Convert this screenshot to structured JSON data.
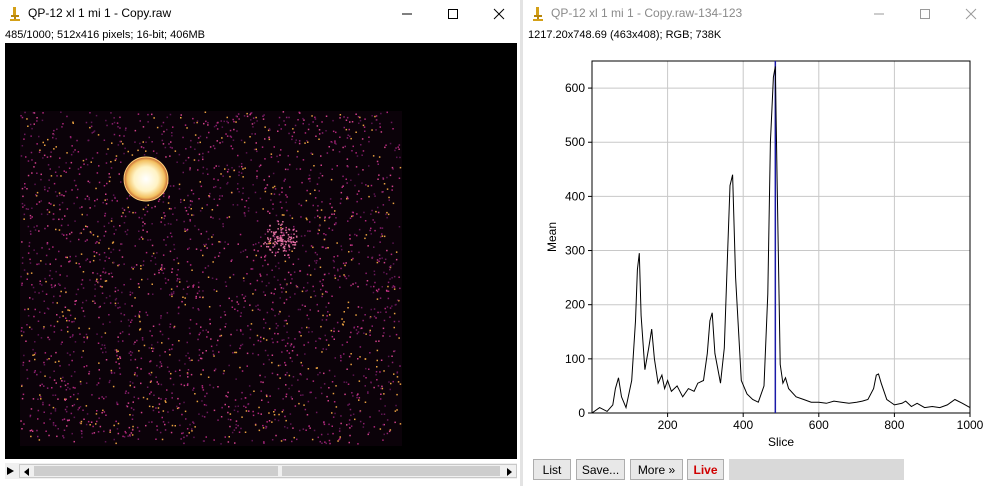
{
  "left_window": {
    "title": "QP-12 xl 1 mi 1 - Copy.raw",
    "info": "485/1000; 512x416 pixels; 16-bit; 406MB",
    "controls": [
      "minimize",
      "maximize",
      "close"
    ]
  },
  "right_window": {
    "title": "QP-12 xl 1 mi 1 - Copy.raw-134-123",
    "info": "1217.20x748.69    (463x408); RGB; 738K",
    "controls": [
      "minimize",
      "maximize",
      "close"
    ],
    "buttons": {
      "list": "List",
      "save": "Save...",
      "more": "More »",
      "live": "Live"
    }
  },
  "colors": {
    "plot_line": "#000000",
    "marker_line": "#1a1aa8",
    "live_text": "#d00000",
    "grid": "#c8c8c8"
  },
  "chart_data": {
    "type": "line",
    "xlabel": "Slice",
    "ylabel": "Mean",
    "xlim": [
      0,
      1000
    ],
    "ylim": [
      0,
      650
    ],
    "x_ticks": [
      200,
      400,
      600,
      800,
      1000
    ],
    "y_ticks": [
      0,
      100,
      200,
      300,
      400,
      500,
      600
    ],
    "grid": true,
    "current_slice": 485,
    "series": [
      {
        "x": [
          0,
          20,
          40,
          55,
          62,
          70,
          78,
          90,
          105,
          115,
          120,
          125,
          130,
          140,
          150,
          158,
          165,
          175,
          185,
          192,
          200,
          210,
          225,
          240,
          255,
          270,
          280,
          295,
          305,
          312,
          318,
          325,
          340,
          350,
          358,
          365,
          372,
          380,
          395,
          410,
          425,
          440,
          455,
          465,
          472,
          480,
          485,
          490,
          498,
          505,
          512,
          520,
          540,
          560,
          580,
          600,
          620,
          640,
          660,
          680,
          700,
          715,
          730,
          745,
          752,
          758,
          765,
          780,
          800,
          820,
          830,
          845,
          860,
          880,
          900,
          920,
          940,
          960,
          980,
          1000
        ],
        "y": [
          0,
          10,
          3,
          15,
          45,
          65,
          30,
          10,
          60,
          170,
          265,
          295,
          180,
          80,
          120,
          155,
          100,
          55,
          70,
          45,
          60,
          40,
          50,
          30,
          45,
          40,
          55,
          60,
          110,
          170,
          185,
          110,
          55,
          120,
          280,
          420,
          440,
          250,
          60,
          35,
          25,
          20,
          50,
          220,
          500,
          620,
          640,
          420,
          90,
          55,
          65,
          45,
          30,
          25,
          20,
          20,
          18,
          22,
          20,
          18,
          20,
          22,
          25,
          45,
          70,
          72,
          55,
          25,
          15,
          18,
          22,
          12,
          18,
          10,
          12,
          10,
          15,
          25,
          18,
          10
        ]
      }
    ]
  }
}
